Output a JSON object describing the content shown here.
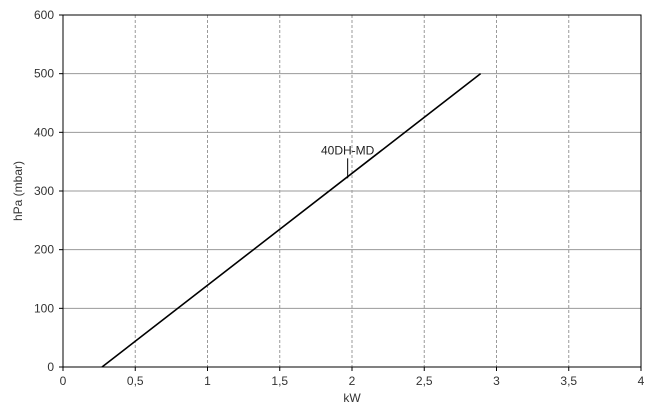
{
  "chart_data": {
    "type": "line",
    "xlabel": "kW",
    "ylabel": "hPa (mbar)",
    "xlim": [
      0,
      4
    ],
    "ylim": [
      0,
      600
    ],
    "x_ticks": [
      0,
      0.5,
      1,
      1.5,
      2,
      2.5,
      3,
      3.5,
      4
    ],
    "x_tick_labels": [
      "0",
      "0,5",
      "1",
      "1,5",
      "2",
      "2,5",
      "3",
      "3,5",
      "4"
    ],
    "y_ticks": [
      0,
      100,
      200,
      300,
      400,
      500,
      600
    ],
    "y_tick_labels": [
      "0",
      "100",
      "200",
      "300",
      "400",
      "500",
      "600"
    ],
    "grid": true,
    "series": [
      {
        "x": [
          0.27,
          2.89
        ],
        "y": [
          0,
          500
        ]
      }
    ],
    "annotations": [
      {
        "text": "40DH-MD",
        "x": 1.97,
        "y": 325
      }
    ],
    "colors": {
      "line": "#000000",
      "grid": "#9a9a9a",
      "axis": "#000000"
    }
  }
}
